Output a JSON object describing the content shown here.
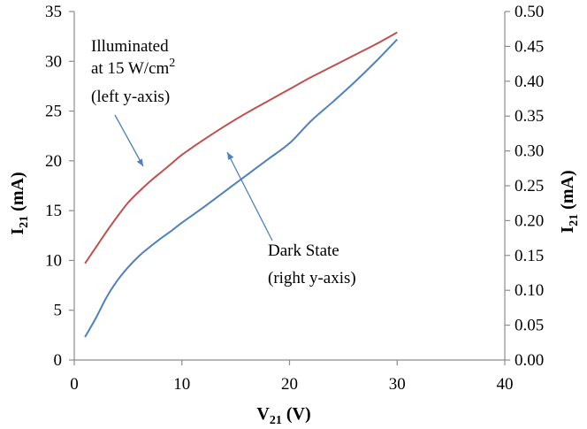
{
  "chart_data": {
    "type": "line",
    "x_axis": {
      "title": "V",
      "title_sub": "21",
      "title_unit": " (V)",
      "range": [
        0,
        40
      ],
      "ticks": [
        0,
        10,
        20,
        30,
        40
      ],
      "tick_labels": [
        "0",
        "10",
        "20",
        "30",
        "40"
      ]
    },
    "y_left": {
      "title": "I",
      "title_sub": "21",
      "title_unit": "  (mA)",
      "range": [
        0,
        35
      ],
      "ticks": [
        0,
        5,
        10,
        15,
        20,
        25,
        30,
        35
      ],
      "tick_labels": [
        "0",
        "5",
        "10",
        "15",
        "20",
        "25",
        "30",
        "35"
      ]
    },
    "y_right": {
      "title": "I",
      "title_sub": "21",
      "title_unit": "  (mA)",
      "range": [
        0,
        0.5
      ],
      "ticks": [
        0,
        0.05,
        0.1,
        0.15,
        0.2,
        0.25,
        0.3,
        0.35,
        0.4,
        0.45,
        0.5
      ],
      "tick_labels": [
        "0.00",
        "0.05",
        "0.10",
        "0.15",
        "0.20",
        "0.25",
        "0.30",
        "0.35",
        "0.40",
        "0.45",
        "0.50"
      ]
    },
    "grid": false,
    "series": [
      {
        "axis": "left",
        "color": "#c0504d",
        "x": [
          1,
          2,
          3,
          4,
          5,
          6,
          7,
          8,
          9,
          10,
          12,
          14,
          16,
          18,
          20,
          22,
          24,
          26,
          28,
          30
        ],
        "y": [
          9.7,
          11.3,
          12.9,
          14.4,
          15.8,
          16.9,
          17.9,
          18.8,
          19.7,
          20.6,
          22.1,
          23.5,
          24.8,
          26.0,
          27.2,
          28.4,
          29.5,
          30.6,
          31.7,
          32.9
        ]
      },
      {
        "axis": "right",
        "color": "#4f81bd",
        "x": [
          1,
          2,
          3,
          4,
          5,
          6,
          7,
          8,
          9,
          10,
          12,
          14,
          16,
          18,
          20,
          22,
          24,
          26,
          28,
          30
        ],
        "y": [
          0.033,
          0.06,
          0.09,
          0.114,
          0.133,
          0.149,
          0.162,
          0.174,
          0.185,
          0.197,
          0.219,
          0.242,
          0.265,
          0.288,
          0.311,
          0.343,
          0.37,
          0.398,
          0.428,
          0.46
        ]
      }
    ],
    "annotations": [
      {
        "lines": [
          "Illuminated",
          "at 15 W/cm",
          "(left y-axis)"
        ],
        "sup": "2"
      },
      {
        "lines": [
          "Dark State",
          "(right y-axis)"
        ]
      }
    ]
  }
}
